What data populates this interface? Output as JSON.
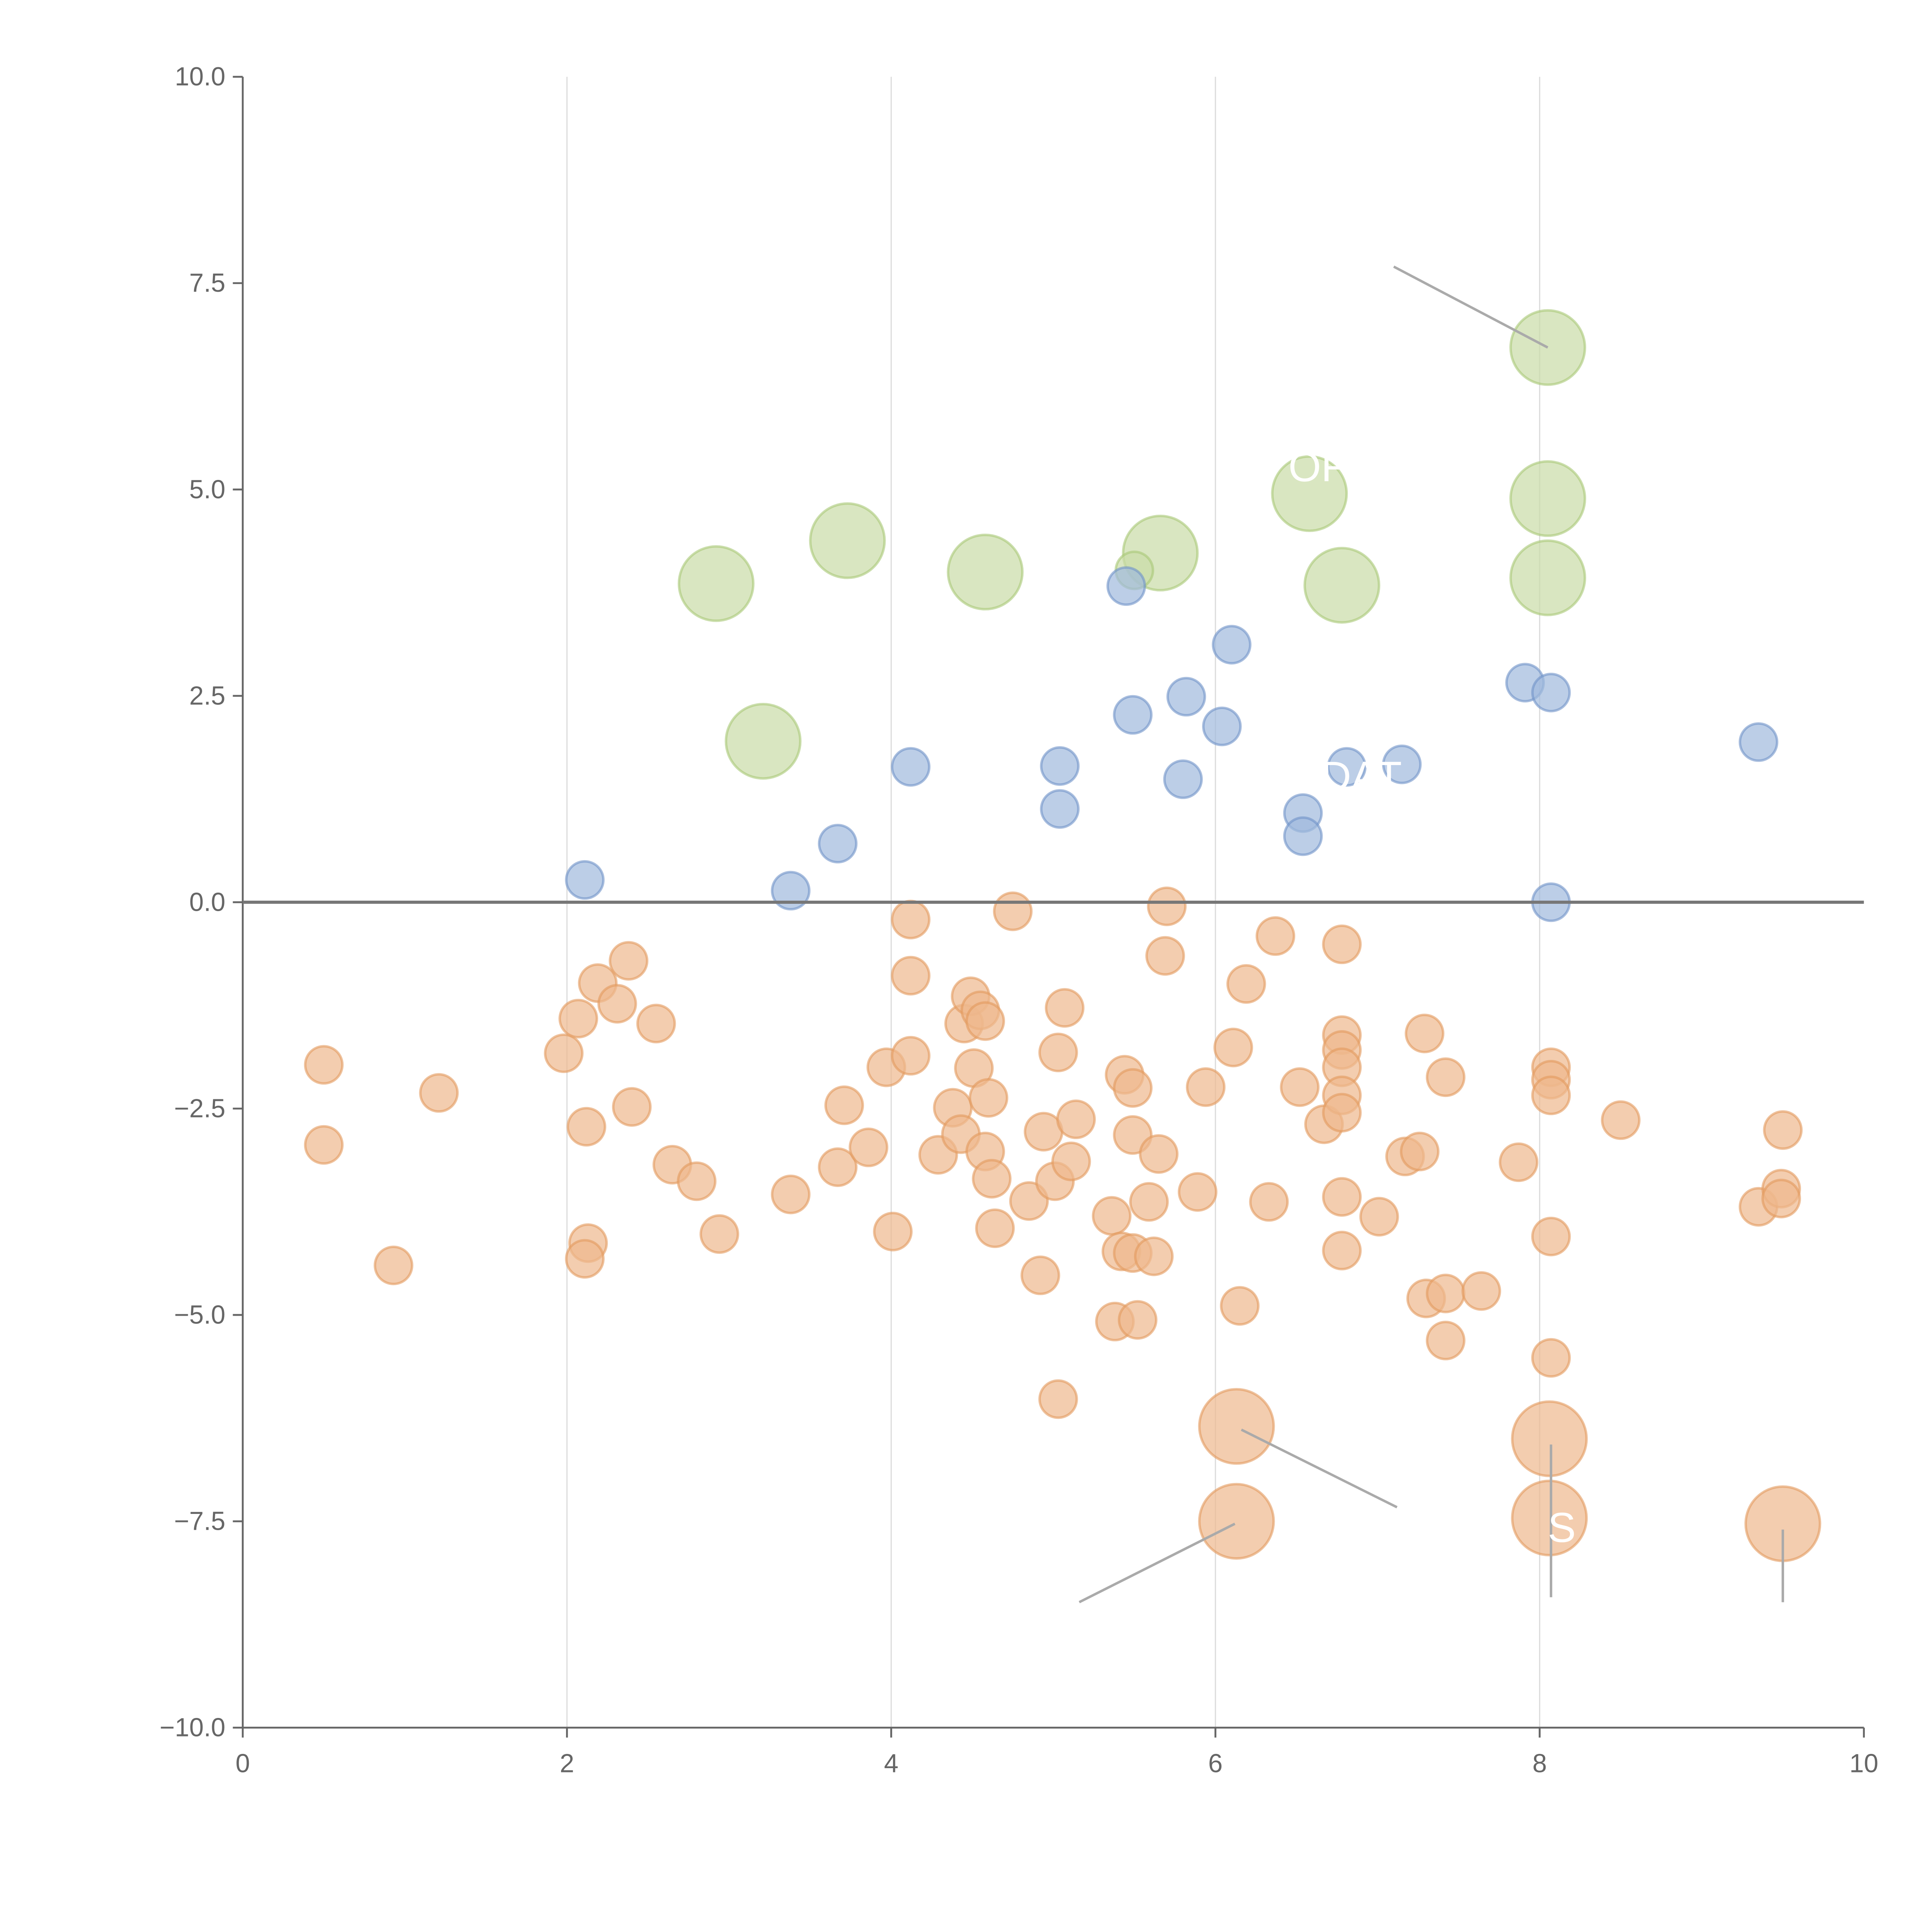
{
  "chart_data": {
    "type": "scatter",
    "title": "",
    "xlabel": "",
    "ylabel": "",
    "xlim": [
      0,
      10
    ],
    "ylim": [
      -10,
      10
    ],
    "grid": "vertical lines at x ticks",
    "x_ticks": [
      "0",
      "2",
      "4",
      "6",
      "8",
      "10"
    ],
    "x_tick_values": [
      0,
      2,
      4,
      6,
      8,
      10
    ],
    "y_ticks": [
      "10.0",
      "7.5",
      "5.0",
      "2.5",
      "0.0",
      "−2.5",
      "−5.0",
      "−7.5",
      "−10.0"
    ],
    "y_tick_values": [
      10,
      7.5,
      5,
      2.5,
      0,
      -2.5,
      -5,
      -7.5,
      -10
    ],
    "colors": {
      "blue": "#9fb9dd",
      "green": "#c9dba6",
      "orange": "#eeb88d",
      "axis": "#666666",
      "grid": "#dddddd"
    },
    "series": [
      {
        "name": "green",
        "color": "#c9dba6",
        "stroke": "#a9c877",
        "points": [
          [
            8.05,
            6.72,
            4
          ],
          [
            8.05,
            4.89,
            4
          ],
          [
            8.05,
            3.93,
            4
          ],
          [
            6.58,
            4.95,
            4
          ],
          [
            6.78,
            3.84,
            4
          ],
          [
            5.66,
            4.23,
            4
          ],
          [
            4.58,
            4.0,
            4
          ],
          [
            3.73,
            4.38,
            4
          ],
          [
            2.92,
            3.86,
            4
          ],
          [
            3.21,
            1.95,
            4
          ],
          [
            5.5,
            4.02,
            1
          ]
        ]
      },
      {
        "name": "blue",
        "color": "#9fb9dd",
        "stroke": "#6f93c8",
        "points": [
          [
            2.11,
            0.27,
            1
          ],
          [
            3.38,
            0.14,
            1
          ],
          [
            3.67,
            0.71,
            1
          ],
          [
            4.12,
            1.64,
            1
          ],
          [
            5.04,
            1.65,
            1
          ],
          [
            5.04,
            1.13,
            1
          ],
          [
            5.45,
            3.83,
            1
          ],
          [
            5.49,
            2.27,
            1
          ],
          [
            5.82,
            2.49,
            1
          ],
          [
            5.8,
            1.49,
            1
          ],
          [
            6.04,
            2.13,
            1
          ],
          [
            6.1,
            3.12,
            1
          ],
          [
            6.54,
            1.08,
            1
          ],
          [
            6.54,
            0.8,
            1
          ],
          [
            6.81,
            1.64,
            1
          ],
          [
            7.15,
            1.67,
            1
          ],
          [
            7.91,
            2.66,
            1
          ],
          [
            8.07,
            2.54,
            1
          ],
          [
            8.07,
            0.0,
            1
          ],
          [
            9.35,
            1.94,
            1
          ]
        ]
      },
      {
        "name": "orange",
        "color": "#eeb88d",
        "stroke": "#e39a5e",
        "points": [
          [
            0.5,
            -1.97,
            1
          ],
          [
            0.5,
            -2.94,
            1
          ],
          [
            0.93,
            -4.4,
            1
          ],
          [
            1.21,
            -2.31,
            1
          ],
          [
            1.98,
            -1.83,
            1
          ],
          [
            2.07,
            -1.41,
            1
          ],
          [
            2.12,
            -2.72,
            1
          ],
          [
            2.13,
            -4.13,
            1
          ],
          [
            2.11,
            -4.32,
            1
          ],
          [
            2.19,
            -0.98,
            1
          ],
          [
            2.31,
            -1.23,
            1
          ],
          [
            2.38,
            -0.71,
            1
          ],
          [
            2.4,
            -2.48,
            1
          ],
          [
            2.55,
            -1.47,
            1
          ],
          [
            2.65,
            -3.18,
            1
          ],
          [
            2.8,
            -3.38,
            1
          ],
          [
            2.94,
            -4.02,
            1
          ],
          [
            3.38,
            -3.54,
            1
          ],
          [
            3.67,
            -3.21,
            1
          ],
          [
            3.71,
            -2.46,
            1
          ],
          [
            3.86,
            -2.97,
            1
          ],
          [
            3.97,
            -2.0,
            1
          ],
          [
            4.01,
            -3.99,
            1
          ],
          [
            4.12,
            -0.21,
            1
          ],
          [
            4.12,
            -0.89,
            1
          ],
          [
            4.12,
            -1.86,
            1
          ],
          [
            4.29,
            -3.06,
            1
          ],
          [
            4.38,
            -2.49,
            1
          ],
          [
            4.43,
            -2.81,
            1
          ],
          [
            4.45,
            -1.47,
            1
          ],
          [
            4.49,
            -1.14,
            1
          ],
          [
            4.51,
            -2.01,
            1
          ],
          [
            4.55,
            -1.31,
            1
          ],
          [
            4.58,
            -1.44,
            1
          ],
          [
            4.6,
            -2.37,
            1
          ],
          [
            4.58,
            -3.02,
            1
          ],
          [
            4.62,
            -3.35,
            1
          ],
          [
            4.64,
            -3.95,
            1
          ],
          [
            4.75,
            -0.11,
            1
          ],
          [
            4.85,
            -3.62,
            1
          ],
          [
            4.92,
            -4.52,
            1
          ],
          [
            4.94,
            -2.78,
            1
          ],
          [
            5.01,
            -3.38,
            1
          ],
          [
            5.03,
            -1.82,
            1
          ],
          [
            5.07,
            -1.28,
            1
          ],
          [
            5.11,
            -3.14,
            1
          ],
          [
            5.14,
            -2.63,
            1
          ],
          [
            5.03,
            -6.02,
            1
          ],
          [
            5.36,
            -3.8,
            1
          ],
          [
            5.38,
            -5.08,
            1
          ],
          [
            5.44,
            -2.09,
            1
          ],
          [
            5.49,
            -2.25,
            1
          ],
          [
            5.49,
            -2.82,
            1
          ],
          [
            5.42,
            -4.23,
            1
          ],
          [
            5.49,
            -4.25,
            1
          ],
          [
            5.52,
            -5.06,
            1
          ],
          [
            5.59,
            -3.63,
            1
          ],
          [
            5.62,
            -4.29,
            1
          ],
          [
            5.65,
            -3.05,
            1
          ],
          [
            5.69,
            -0.65,
            1
          ],
          [
            5.7,
            -0.05,
            1
          ],
          [
            5.89,
            -3.51,
            1
          ],
          [
            5.94,
            -2.24,
            1
          ],
          [
            6.11,
            -1.76,
            1
          ],
          [
            6.15,
            -4.89,
            1
          ],
          [
            6.19,
            -0.99,
            1
          ],
          [
            6.33,
            -3.63,
            1
          ],
          [
            6.37,
            -0.41,
            1
          ],
          [
            6.52,
            -2.24,
            1
          ],
          [
            6.67,
            -2.69,
            1
          ],
          [
            6.78,
            -0.51,
            1
          ],
          [
            6.78,
            -1.61,
            1
          ],
          [
            6.78,
            -1.79,
            1
          ],
          [
            6.78,
            -2.0,
            1
          ],
          [
            6.78,
            -2.34,
            1
          ],
          [
            6.78,
            -2.55,
            1
          ],
          [
            6.78,
            -3.57,
            1
          ],
          [
            6.78,
            -4.22,
            1
          ],
          [
            7.01,
            -3.81,
            1
          ],
          [
            7.17,
            -3.08,
            1
          ],
          [
            7.26,
            -3.02,
            1
          ],
          [
            7.29,
            -1.59,
            1
          ],
          [
            7.3,
            -4.8,
            1
          ],
          [
            7.42,
            -2.12,
            1
          ],
          [
            7.42,
            -4.74,
            1
          ],
          [
            7.42,
            -5.31,
            1
          ],
          [
            7.64,
            -4.71,
            1
          ],
          [
            7.87,
            -3.15,
            1
          ],
          [
            8.07,
            -2.0,
            1
          ],
          [
            8.07,
            -2.15,
            1
          ],
          [
            8.07,
            -2.34,
            1
          ],
          [
            8.07,
            -4.05,
            1
          ],
          [
            8.07,
            -5.52,
            1
          ],
          [
            8.5,
            -2.64,
            1
          ],
          [
            9.35,
            -3.69,
            1
          ],
          [
            9.5,
            -2.76,
            1
          ],
          [
            9.49,
            -3.47,
            1
          ],
          [
            9.49,
            -3.59,
            1
          ],
          [
            6.13,
            -6.35,
            4
          ],
          [
            6.13,
            -7.5,
            4
          ],
          [
            8.06,
            -6.5,
            4
          ],
          [
            8.06,
            -7.46,
            4
          ],
          [
            9.5,
            -7.53,
            4
          ]
        ]
      }
    ],
    "annotation_lines": [
      [
        7.1,
        7.7,
        8.05,
        6.72
      ],
      [
        6.16,
        -6.39,
        7.12,
        -7.33
      ],
      [
        5.16,
        -8.48,
        6.12,
        -7.53
      ],
      [
        8.07,
        -6.57,
        8.07,
        -8.42
      ],
      [
        9.5,
        -7.6,
        9.5,
        -8.48
      ]
    ],
    "annotations": [
      {
        "text": "OF",
        "x": 6.45,
        "y": 5.1
      },
      {
        "text": "DAT",
        "x": 6.65,
        "y": 1.35
      },
      {
        "text": "S",
        "x": 8.05,
        "y": -7.75
      }
    ]
  }
}
